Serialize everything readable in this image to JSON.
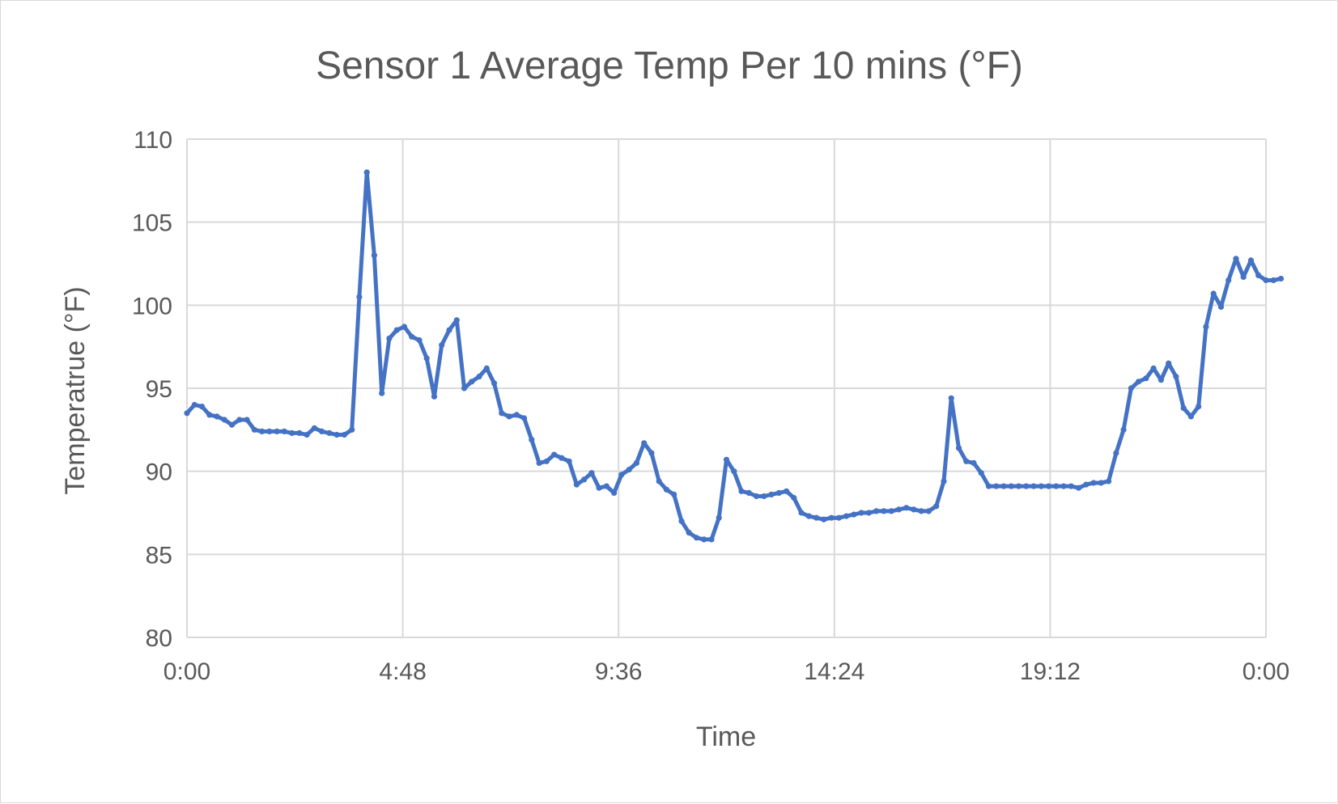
{
  "chart_data": {
    "type": "line",
    "title": "Sensor 1 Average Temp Per 10 mins (°F)",
    "xlabel": "Time",
    "ylabel": "Temperatrue (°F)",
    "ylim": [
      80,
      110
    ],
    "yticks": [
      "80",
      "85",
      "90",
      "95",
      "100",
      "105",
      "110"
    ],
    "xlim": [
      "0:00",
      "24:00"
    ],
    "xticks": [
      "0:00",
      "4:48",
      "9:36",
      "14:24",
      "19:12",
      "0:00"
    ],
    "grid": true,
    "legend": "none",
    "series_color": "#4472c4",
    "x_interval_minutes": 10,
    "series": [
      {
        "values": [
          93.5,
          94.0,
          93.9,
          93.4,
          93.3,
          93.1,
          92.8,
          93.1,
          93.1,
          92.5,
          92.4,
          92.4,
          92.4,
          92.4,
          92.3,
          92.3,
          92.2,
          92.6,
          92.4,
          92.3,
          92.2,
          92.2,
          92.5,
          100.5,
          108.0,
          103.0,
          94.7,
          98.0,
          98.5,
          98.7,
          98.1,
          97.9,
          96.8,
          94.5,
          97.6,
          98.5,
          99.1,
          95.0,
          95.4,
          95.7,
          96.2,
          95.3,
          93.5,
          93.3,
          93.4,
          93.2,
          91.9,
          90.5,
          90.6,
          91.0,
          90.8,
          90.6,
          89.2,
          89.5,
          89.9,
          89.0,
          89.1,
          88.7,
          89.8,
          90.1,
          90.5,
          91.7,
          91.1,
          89.4,
          88.9,
          88.6,
          87.0,
          86.3,
          86.0,
          85.9,
          85.9,
          87.2,
          90.7,
          90.0,
          88.8,
          88.7,
          88.5,
          88.5,
          88.6,
          88.7,
          88.8,
          88.4,
          87.5,
          87.3,
          87.2,
          87.1,
          87.2,
          87.2,
          87.3,
          87.4,
          87.5,
          87.5,
          87.6,
          87.6,
          87.6,
          87.7,
          87.8,
          87.7,
          87.6,
          87.6,
          87.9,
          89.4,
          94.4,
          91.4,
          90.6,
          90.5,
          89.9,
          89.1,
          89.1,
          89.1,
          89.1,
          89.1,
          89.1,
          89.1,
          89.1,
          89.1,
          89.1,
          89.1,
          89.1,
          89.0,
          89.2,
          89.3,
          89.3,
          89.4,
          91.1,
          92.5,
          95.0,
          95.4,
          95.6,
          96.2,
          95.5,
          96.5,
          95.7,
          93.8,
          93.3,
          93.9,
          98.7,
          100.7,
          99.9,
          101.5,
          102.8,
          101.7,
          102.7,
          101.8,
          101.5,
          101.5,
          101.6
        ]
      }
    ]
  }
}
